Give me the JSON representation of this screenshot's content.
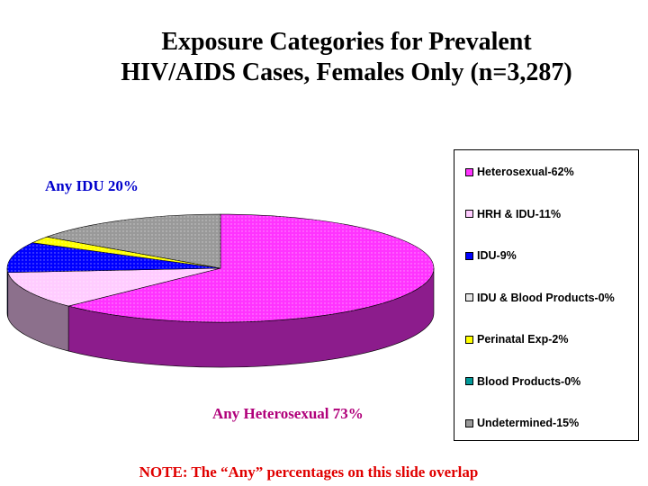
{
  "title_line1": "Exposure Categories for Prevalent",
  "title_line2": "HIV/AIDS Cases, Females Only (n=3,287)",
  "annotations": {
    "any_idu": "Any IDU 20%",
    "any_hetero": "Any Heterosexual 73%",
    "overlap_note": "NOTE: The “Any” percentages on this slide overlap"
  },
  "chart_data": {
    "type": "pie",
    "title": "Exposure Categories for Prevalent HIV/AIDS Cases, Females Only (n=3,287)",
    "legend_position": "right",
    "slices": [
      {
        "label": "Heterosexual-62%",
        "value": 62,
        "color": "#ff33ff"
      },
      {
        "label": "HRH & IDU-11%",
        "value": 11,
        "color": "#ffccff"
      },
      {
        "label": "IDU-9%",
        "value": 9,
        "color": "#0000ff"
      },
      {
        "label": "IDU & Blood Products-0%",
        "value": 0,
        "color": "#e6e6e6"
      },
      {
        "label": "Perinatal Exp-2%",
        "value": 2,
        "color": "#ffff00"
      },
      {
        "label": "Blood Products-0%",
        "value": 0,
        "color": "#009999"
      },
      {
        "label": "Undetermined-15%",
        "value": 15,
        "color": "#999999"
      }
    ]
  }
}
